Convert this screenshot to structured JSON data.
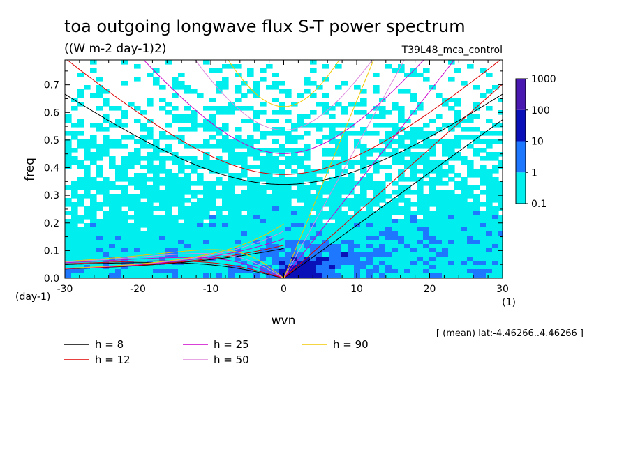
{
  "title": "toa outgoing longwave flux S-T power spectrum",
  "units": "((W m-2 day-1)2)",
  "run_name": "T39L48_mca_control",
  "subtitle": "[ (mean) lat:-4.46266..4.46266 ]",
  "chart_data": {
    "type": "contour",
    "xlabel": "wvn",
    "ylabel": "freq",
    "x_unit": "(1)",
    "y_unit": "(day-1)",
    "xlim": [
      -30,
      30
    ],
    "ylim": [
      0,
      0.79
    ],
    "x_ticks": [
      "-30",
      "-20",
      "-10",
      "0",
      "10",
      "20",
      "30"
    ],
    "y_ticks": [
      "0.0",
      "0.1",
      "0.2",
      "0.3",
      "0.4",
      "0.5",
      "0.6",
      "0.7"
    ],
    "colorbar": {
      "levels": [
        "0.1",
        "1",
        "10",
        "100",
        "1000"
      ],
      "colors": [
        "#00eeee",
        "#1e78ff",
        "#0a10b8",
        "#4818b0"
      ]
    },
    "dispersion_curves": [
      {
        "label": "h =  8",
        "h": 8,
        "color": "#000000"
      },
      {
        "label": "h = 12",
        "h": 12,
        "color": "#e00000"
      },
      {
        "label": "h = 25",
        "h": 25,
        "color": "#cc00cc"
      },
      {
        "label": "h = 50",
        "h": 50,
        "color": "#dd88dd"
      },
      {
        "label": "h = 90",
        "h": 90,
        "color": "#f0c800"
      }
    ]
  }
}
